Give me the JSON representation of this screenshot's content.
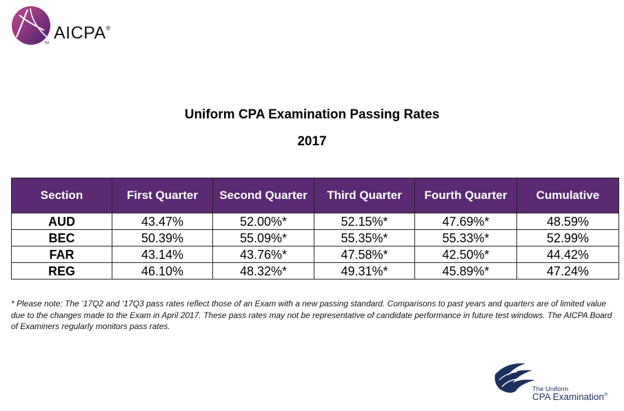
{
  "header": {
    "logo_text": "AICPA",
    "logo_registered": "®",
    "logo_trademark": "TM"
  },
  "title": "Uniform CPA Examination Passing Rates",
  "year": "2017",
  "table": {
    "columns": [
      "Section",
      "First Quarter",
      "Second Quarter",
      "Third Quarter",
      "Fourth Quarter",
      "Cumulative"
    ],
    "rows": [
      [
        "AUD",
        "43.47%",
        "52.00%*",
        "52.15%*",
        "47.69%*",
        "48.59%"
      ],
      [
        "BEC",
        "50.39%",
        "55.09%*",
        "55.35%*",
        "55.33%*",
        "52.99%"
      ],
      [
        "FAR",
        "43.14%",
        "43.76%*",
        "47.58%*",
        "42.50%*",
        "44.42%"
      ],
      [
        "REG",
        "46.10%",
        "48.32%*",
        "49.31%*",
        "45.89%*",
        "47.24%"
      ]
    ]
  },
  "footnote": "* Please note: The ‘17Q2 and ‘17Q3 pass rates reflect those of an Exam with a new passing standard. Comparisons to past years and quarters are of limited value due to the changes made to the Exam in April 2017. These pass rates may not be representative of candidate performance in future test windows. The AICPA Board of Examiners regularly monitors pass rates.",
  "footer_logo": {
    "line1": "The Uniform",
    "line2": "CPA Examination",
    "registered": "®"
  },
  "colors": {
    "header_purple": "#5b2a72",
    "logo_purple": "#6b2a7c",
    "exam_navy": "#1b2f5e"
  }
}
